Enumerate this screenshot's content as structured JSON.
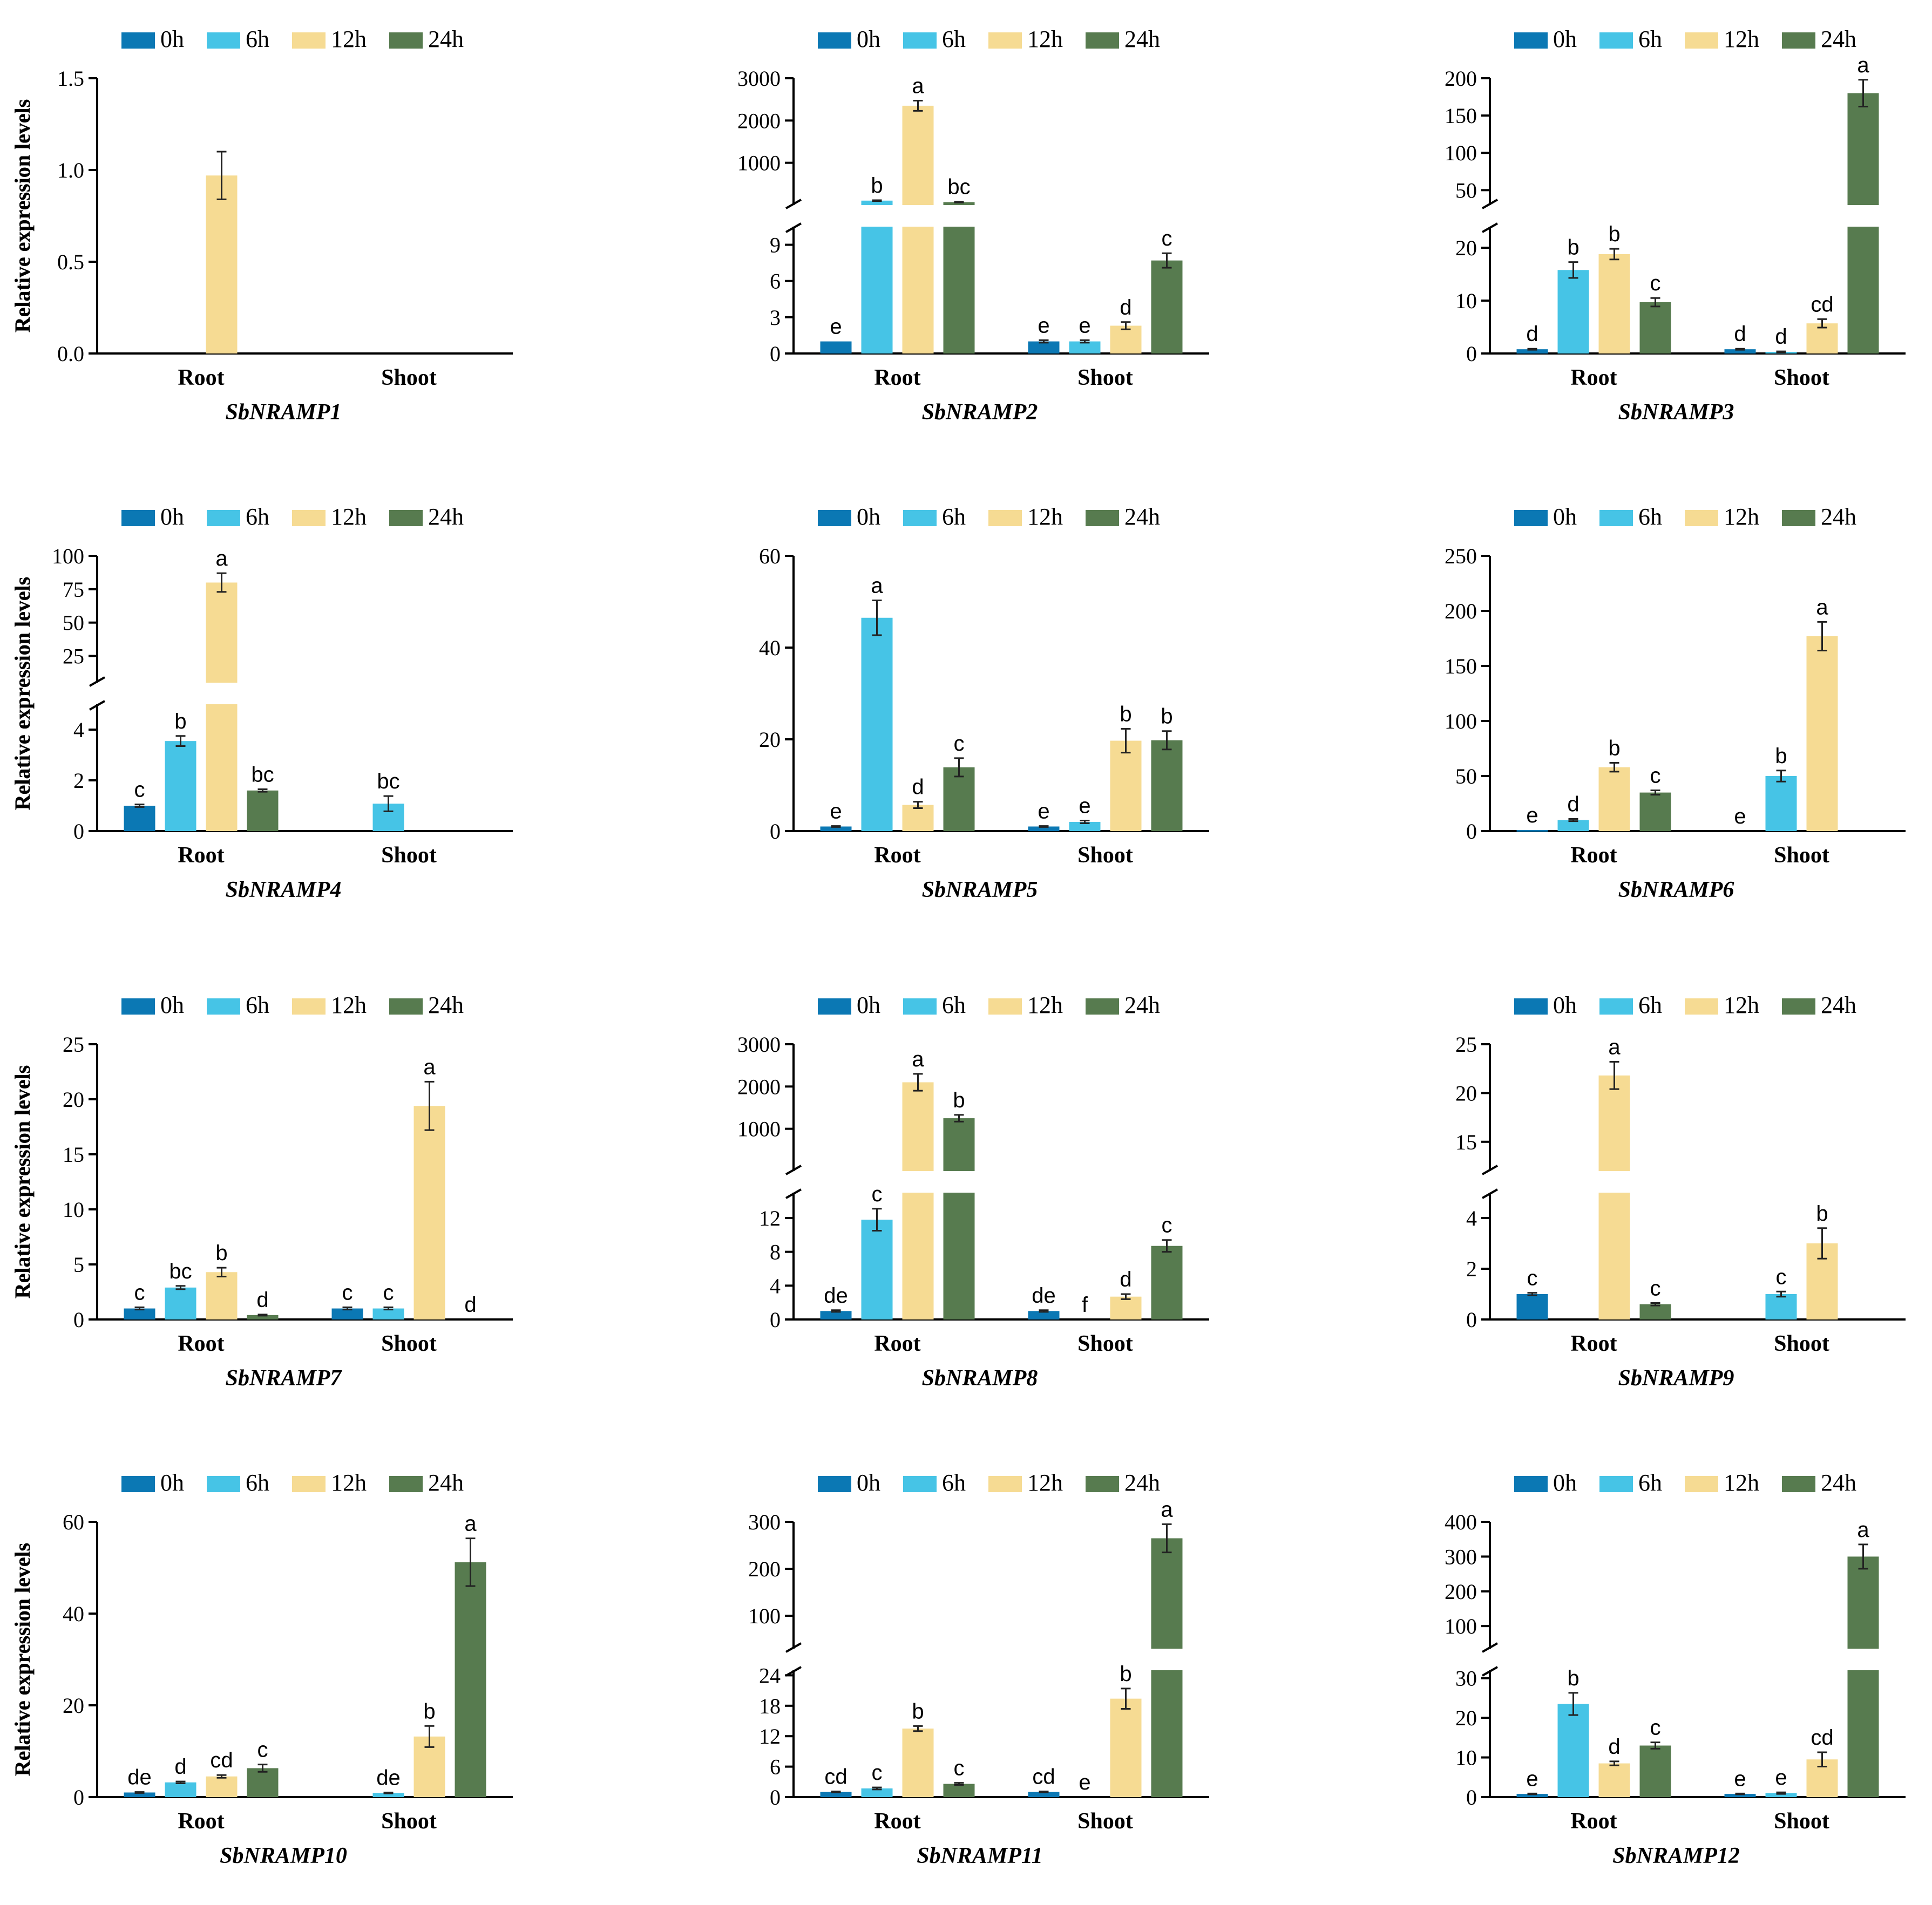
{
  "figure": {
    "legend_labels": [
      "0h",
      "6h",
      "12h",
      "24h"
    ],
    "colors": {
      "0h": "#0b78b4",
      "6h": "#46c4e6",
      "12h": "#f6db93",
      "24h": "#577b4f"
    }
  },
  "chart_data": [
    {
      "type": "bar",
      "gene": "SbNRAMP1",
      "ylabel": "Relative expression levels",
      "categories": [
        "Root",
        "Shoot"
      ],
      "legend_position": "top",
      "ylim": [
        0,
        1.5
      ],
      "yticks": [
        "0.0",
        "0.5",
        "1.0",
        "1.5"
      ],
      "break": null,
      "series": [
        {
          "name": "0h",
          "values": [
            0,
            0
          ],
          "errors": [
            0,
            0
          ],
          "labels": [
            "",
            ""
          ]
        },
        {
          "name": "6h",
          "values": [
            0,
            0
          ],
          "errors": [
            0,
            0
          ],
          "labels": [
            "",
            ""
          ]
        },
        {
          "name": "12h",
          "values": [
            0.97,
            0
          ],
          "errors": [
            0.13,
            0
          ],
          "labels": [
            "",
            ""
          ]
        },
        {
          "name": "24h",
          "values": [
            0,
            0
          ],
          "errors": [
            0,
            0
          ],
          "labels": [
            "",
            ""
          ]
        }
      ]
    },
    {
      "type": "bar",
      "gene": "SbNRAMP2",
      "ylabel": "Relative expression levels",
      "categories": [
        "Root",
        "Shoot"
      ],
      "legend_position": "top",
      "ylim": [
        0,
        3000
      ],
      "yticks": [
        "0",
        "3",
        "6",
        "9",
        "1000",
        "2000",
        "3000"
      ],
      "break": {
        "lower": [
          0,
          10.5
        ],
        "upper": [
          0,
          3000
        ],
        "upper_ticks": [
          1000,
          2000,
          3000
        ],
        "lower_ticks": [
          0,
          3,
          6,
          9
        ]
      },
      "series": [
        {
          "name": "0h",
          "values": [
            1,
            1
          ],
          "errors": [
            0,
            0.1
          ],
          "labels": [
            "e",
            "e"
          ]
        },
        {
          "name": "6h",
          "values": [
            105,
            1
          ],
          "errors": [
            10,
            0.1
          ],
          "labels": [
            "b",
            "e"
          ]
        },
        {
          "name": "12h",
          "values": [
            2350,
            2.3
          ],
          "errors": [
            120,
            0.3
          ],
          "labels": [
            "a",
            "d"
          ]
        },
        {
          "name": "24h",
          "values": [
            70,
            7.7
          ],
          "errors": [
            10,
            0.6
          ],
          "labels": [
            "bc",
            "c"
          ]
        }
      ]
    },
    {
      "type": "bar",
      "gene": "SbNRAMP3",
      "ylabel": "Relative expression levels",
      "categories": [
        "Root",
        "Shoot"
      ],
      "legend_position": "top",
      "ylim": [
        0,
        200
      ],
      "yticks": [
        "0",
        "10",
        "20",
        "50",
        "100",
        "150",
        "200"
      ],
      "break": {
        "lower": [
          0,
          24
        ],
        "upper": [
          30,
          200
        ],
        "upper_ticks": [
          50,
          100,
          150,
          200
        ],
        "lower_ticks": [
          0,
          10,
          20
        ]
      },
      "series": [
        {
          "name": "0h",
          "values": [
            0.8,
            0.8
          ],
          "errors": [
            0.1,
            0.1
          ],
          "labels": [
            "d",
            "d"
          ]
        },
        {
          "name": "6h",
          "values": [
            15.8,
            0.3
          ],
          "errors": [
            1.5,
            0.1
          ],
          "labels": [
            "b",
            "d"
          ]
        },
        {
          "name": "12h",
          "values": [
            18.8,
            5.7
          ],
          "errors": [
            1.0,
            0.8
          ],
          "labels": [
            "b",
            "cd"
          ]
        },
        {
          "name": "24h",
          "values": [
            9.7,
            180
          ],
          "errors": [
            0.8,
            18
          ],
          "labels": [
            "c",
            "a"
          ]
        }
      ]
    },
    {
      "type": "bar",
      "gene": "SbNRAMP4",
      "ylabel": "Relative expression levels",
      "categories": [
        "Root",
        "Shoot"
      ],
      "legend_position": "top",
      "ylim": [
        0,
        100
      ],
      "yticks": [
        "0",
        "2",
        "4",
        "25",
        "50",
        "75",
        "100"
      ],
      "break": {
        "lower": [
          0,
          5
        ],
        "upper": [
          5,
          100
        ],
        "upper_ticks": [
          25,
          50,
          75,
          100
        ],
        "lower_ticks": [
          0,
          2,
          4
        ]
      },
      "series": [
        {
          "name": "0h",
          "values": [
            1.0,
            0
          ],
          "errors": [
            0.05,
            0
          ],
          "labels": [
            "c",
            ""
          ]
        },
        {
          "name": "6h",
          "values": [
            3.55,
            1.08
          ],
          "errors": [
            0.2,
            0.3
          ],
          "labels": [
            "b",
            "bc"
          ]
        },
        {
          "name": "12h",
          "values": [
            80,
            0
          ],
          "errors": [
            7,
            0
          ],
          "labels": [
            "a",
            ""
          ]
        },
        {
          "name": "24h",
          "values": [
            1.6,
            0
          ],
          "errors": [
            0.05,
            0
          ],
          "labels": [
            "bc",
            ""
          ]
        }
      ]
    },
    {
      "type": "bar",
      "gene": "SbNRAMP5",
      "ylabel": "Relative expression levels",
      "categories": [
        "Root",
        "Shoot"
      ],
      "legend_position": "top",
      "ylim": [
        0,
        60
      ],
      "yticks": [
        "0",
        "20",
        "40",
        "60"
      ],
      "break": null,
      "series": [
        {
          "name": "0h",
          "values": [
            1.0,
            1.0
          ],
          "errors": [
            0.1,
            0.1
          ],
          "labels": [
            "e",
            "e"
          ]
        },
        {
          "name": "6h",
          "values": [
            46.5,
            2.0
          ],
          "errors": [
            3.8,
            0.3
          ],
          "labels": [
            "a",
            "e"
          ]
        },
        {
          "name": "12h",
          "values": [
            5.7,
            19.7
          ],
          "errors": [
            0.7,
            2.6
          ],
          "labels": [
            "d",
            "b"
          ]
        },
        {
          "name": "24h",
          "values": [
            13.9,
            19.8
          ],
          "errors": [
            2.0,
            2.0
          ],
          "labels": [
            "c",
            "b"
          ]
        }
      ]
    },
    {
      "type": "bar",
      "gene": "SbNRAMP6",
      "ylabel": "Relative expression levels",
      "categories": [
        "Root",
        "Shoot"
      ],
      "legend_position": "top",
      "ylim": [
        0,
        250
      ],
      "yticks": [
        "0",
        "50",
        "100",
        "150",
        "200",
        "250"
      ],
      "break": null,
      "series": [
        {
          "name": "0h",
          "values": [
            1.0,
            0
          ],
          "errors": [
            0,
            0
          ],
          "labels": [
            "e",
            "e"
          ]
        },
        {
          "name": "6h",
          "values": [
            10,
            50
          ],
          "errors": [
            1,
            5
          ],
          "labels": [
            "d",
            "b"
          ]
        },
        {
          "name": "12h",
          "values": [
            58,
            177
          ],
          "errors": [
            4,
            13
          ],
          "labels": [
            "b",
            "a"
          ]
        },
        {
          "name": "24h",
          "values": [
            35,
            0
          ],
          "errors": [
            2,
            0
          ],
          "labels": [
            "c",
            ""
          ]
        }
      ]
    },
    {
      "type": "bar",
      "gene": "SbNRAMP7",
      "ylabel": "Relative expression levels",
      "categories": [
        "Root",
        "Shoot"
      ],
      "legend_position": "top",
      "ylim": [
        0,
        25
      ],
      "yticks": [
        "0",
        "5",
        "10",
        "15",
        "20",
        "25"
      ],
      "break": null,
      "series": [
        {
          "name": "0h",
          "values": [
            1.0,
            1.0
          ],
          "errors": [
            0.1,
            0.1
          ],
          "labels": [
            "c",
            "c"
          ]
        },
        {
          "name": "6h",
          "values": [
            2.9,
            1.0
          ],
          "errors": [
            0.15,
            0.1
          ],
          "labels": [
            "bc",
            "c"
          ]
        },
        {
          "name": "12h",
          "values": [
            4.3,
            19.4
          ],
          "errors": [
            0.4,
            2.2
          ],
          "labels": [
            "b",
            "a"
          ]
        },
        {
          "name": "24h",
          "values": [
            0.4,
            0
          ],
          "errors": [
            0.05,
            0
          ],
          "labels": [
            "d",
            "d"
          ]
        }
      ]
    },
    {
      "type": "bar",
      "gene": "SbNRAMP8",
      "ylabel": "Relative expression levels",
      "categories": [
        "Root",
        "Shoot"
      ],
      "legend_position": "top",
      "ylim": [
        0,
        3000
      ],
      "yticks": [
        "0",
        "4",
        "8",
        "12",
        "1000",
        "2000",
        "3000"
      ],
      "break": {
        "lower": [
          0,
          15
        ],
        "upper": [
          0,
          3000
        ],
        "upper_ticks": [
          1000,
          2000,
          3000
        ],
        "lower_ticks": [
          0,
          4,
          8,
          12
        ]
      },
      "series": [
        {
          "name": "0h",
          "values": [
            1.0,
            1.0
          ],
          "errors": [
            0.1,
            0.1
          ],
          "labels": [
            "de",
            "de"
          ]
        },
        {
          "name": "6h",
          "values": [
            11.8,
            0
          ],
          "errors": [
            1.3,
            0
          ],
          "labels": [
            "c",
            "f"
          ]
        },
        {
          "name": "12h",
          "values": [
            2100,
            2.7
          ],
          "errors": [
            200,
            0.3
          ],
          "labels": [
            "a",
            "d"
          ]
        },
        {
          "name": "24h",
          "values": [
            1250,
            8.7
          ],
          "errors": [
            80,
            0.7
          ],
          "labels": [
            "b",
            "c"
          ]
        }
      ]
    },
    {
      "type": "bar",
      "gene": "SbNRAMP9",
      "ylabel": "Relative expression levels",
      "categories": [
        "Root",
        "Shoot"
      ],
      "legend_position": "top",
      "ylim": [
        0,
        25
      ],
      "yticks": [
        "0",
        "2",
        "4",
        "15",
        "20",
        "25"
      ],
      "break": {
        "lower": [
          0,
          5
        ],
        "upper": [
          12,
          25
        ],
        "upper_ticks": [
          15,
          20,
          25
        ],
        "lower_ticks": [
          0,
          2,
          4
        ]
      },
      "series": [
        {
          "name": "0h",
          "values": [
            1.0,
            0
          ],
          "errors": [
            0.05,
            0
          ],
          "labels": [
            "c",
            ""
          ]
        },
        {
          "name": "6h",
          "values": [
            0,
            1.0
          ],
          "errors": [
            0,
            0.1
          ],
          "labels": [
            "",
            "c"
          ]
        },
        {
          "name": "12h",
          "values": [
            21.8,
            3.0
          ],
          "errors": [
            1.4,
            0.6
          ],
          "labels": [
            "a",
            "b"
          ]
        },
        {
          "name": "24h",
          "values": [
            0.6,
            0
          ],
          "errors": [
            0.05,
            0
          ],
          "labels": [
            "c",
            ""
          ]
        }
      ]
    },
    {
      "type": "bar",
      "gene": "SbNRAMP10",
      "ylabel": "Relative expression levels",
      "categories": [
        "Root",
        "Shoot"
      ],
      "legend_position": "top",
      "ylim": [
        0,
        60
      ],
      "yticks": [
        "0",
        "20",
        "40",
        "60"
      ],
      "break": null,
      "series": [
        {
          "name": "0h",
          "values": [
            1.0,
            0
          ],
          "errors": [
            0.1,
            0
          ],
          "labels": [
            "de",
            ""
          ]
        },
        {
          "name": "6h",
          "values": [
            3.2,
            0.9
          ],
          "errors": [
            0.2,
            0.1
          ],
          "labels": [
            "d",
            "de"
          ]
        },
        {
          "name": "12h",
          "values": [
            4.5,
            13.2
          ],
          "errors": [
            0.3,
            2.3
          ],
          "labels": [
            "cd",
            "b"
          ]
        },
        {
          "name": "24h",
          "values": [
            6.3,
            51.2
          ],
          "errors": [
            0.8,
            5.2
          ],
          "labels": [
            "c",
            "a"
          ]
        }
      ]
    },
    {
      "type": "bar",
      "gene": "SbNRAMP11",
      "ylabel": "Relative expression levels",
      "categories": [
        "Root",
        "Shoot"
      ],
      "legend_position": "top",
      "ylim": [
        0,
        300
      ],
      "yticks": [
        "0",
        "6",
        "12",
        "18",
        "24",
        "100",
        "200",
        "300"
      ],
      "break": {
        "lower": [
          0,
          25
        ],
        "upper": [
          30,
          300
        ],
        "upper_ticks": [
          100,
          200,
          300
        ],
        "lower_ticks": [
          0,
          6,
          12,
          18,
          24
        ]
      },
      "series": [
        {
          "name": "0h",
          "values": [
            1.0,
            1.0
          ],
          "errors": [
            0.1,
            0.1
          ],
          "labels": [
            "cd",
            "cd"
          ]
        },
        {
          "name": "6h",
          "values": [
            1.7,
            0
          ],
          "errors": [
            0.2,
            0
          ],
          "labels": [
            "c",
            "e"
          ]
        },
        {
          "name": "12h",
          "values": [
            13.5,
            19.4
          ],
          "errors": [
            0.5,
            2.0
          ],
          "labels": [
            "b",
            "b"
          ]
        },
        {
          "name": "24h",
          "values": [
            2.6,
            265
          ],
          "errors": [
            0.2,
            30
          ],
          "labels": [
            "c",
            "a"
          ]
        }
      ]
    },
    {
      "type": "bar",
      "gene": "SbNRAMP12",
      "ylabel": "Relative expression levels",
      "categories": [
        "Root",
        "Shoot"
      ],
      "legend_position": "top",
      "ylim": [
        0,
        400
      ],
      "yticks": [
        "0",
        "10",
        "20",
        "30",
        "100",
        "200",
        "300",
        "400"
      ],
      "break": {
        "lower": [
          0,
          32
        ],
        "upper": [
          35,
          400
        ],
        "upper_ticks": [
          100,
          200,
          300,
          400
        ],
        "lower_ticks": [
          0,
          10,
          20,
          30
        ]
      },
      "series": [
        {
          "name": "0h",
          "values": [
            0.8,
            0.8
          ],
          "errors": [
            0.1,
            0.1
          ],
          "labels": [
            "e",
            "e"
          ]
        },
        {
          "name": "6h",
          "values": [
            23.5,
            1.0
          ],
          "errors": [
            2.8,
            0.2
          ],
          "labels": [
            "b",
            "e"
          ]
        },
        {
          "name": "12h",
          "values": [
            8.5,
            9.5
          ],
          "errors": [
            0.5,
            1.8
          ],
          "labels": [
            "d",
            "cd"
          ]
        },
        {
          "name": "24h",
          "values": [
            13.0,
            300
          ],
          "errors": [
            0.8,
            35
          ],
          "labels": [
            "c",
            "a"
          ]
        }
      ]
    }
  ]
}
